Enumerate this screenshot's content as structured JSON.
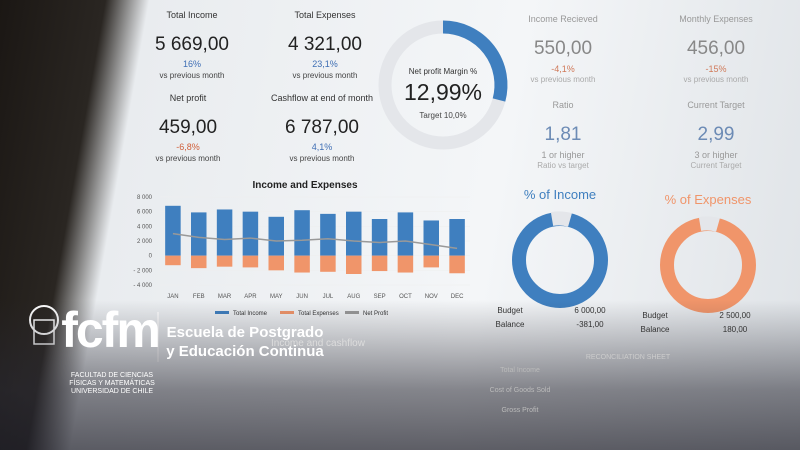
{
  "kpis": [
    {
      "label": "Total Income",
      "value": "5 669,00",
      "change": "16%",
      "note": "vs previous month"
    },
    {
      "label": "Total Expenses",
      "value": "4 321,00",
      "change": "23,1%",
      "note": "vs previous month"
    },
    {
      "label": "Net profit",
      "value": "459,00",
      "change": "-6,8%",
      "note": "vs previous month"
    },
    {
      "label": "Cashflow at end of month",
      "value": "6 787,00",
      "change": "4,1%",
      "note": "vs previous month"
    }
  ],
  "gauge": {
    "title": "Net profit Margin %",
    "value": "12,99%",
    "target": "Target 10,0%"
  },
  "right_kpis": [
    {
      "label": "Income Recieved",
      "value": "550,00",
      "change": "-4,1%",
      "note": "vs previous month"
    },
    {
      "label": "Monthly Expenses",
      "value": "456,00",
      "change": "-15%",
      "note": "vs previous month"
    },
    {
      "label": "Ratio",
      "value": "1,81",
      "change": "1 or higher",
      "note": "Ratio vs target"
    },
    {
      "label": "Current Target",
      "value": "2,99",
      "change": "3 or higher",
      "note": "Current Target"
    }
  ],
  "donuts": [
    {
      "title": "% of Income",
      "budget_label": "Budget",
      "budget": "6 000,00",
      "balance_label": "Balance",
      "balance": "-381,00"
    },
    {
      "title": "% of Expenses",
      "budget_label": "Budget",
      "budget": "2 500,00",
      "balance_label": "Balance",
      "balance": "180,00"
    }
  ],
  "chart": {
    "title": "Income and Expenses",
    "categories": [
      "JAN",
      "FEB",
      "MAR",
      "APR",
      "MAY",
      "JUN",
      "JUL",
      "AUG",
      "SEP",
      "OCT",
      "NOV",
      "DEC"
    ],
    "ylim": [
      -4000,
      8000
    ],
    "yticks": [
      {
        "value": 8000,
        "label": "8 000"
      },
      {
        "value": 6000,
        "label": "6 000"
      },
      {
        "value": 4000,
        "label": "4 000"
      },
      {
        "value": 2000,
        "label": "2 000"
      },
      0,
      {
        "value": -2000,
        "label": "- 2 000"
      },
      {
        "value": -4000,
        "label": "- 4 000"
      }
    ],
    "series": [
      {
        "name": "Total Income",
        "color": "#3f7fbf",
        "values": [
          6800,
          5900,
          6300,
          6000,
          5300,
          6200,
          5700,
          6000,
          5000,
          5900,
          4800,
          5000
        ]
      },
      {
        "name": "Total Expenses",
        "color": "#f0956a",
        "values": [
          -1300,
          -1700,
          -1500,
          -1600,
          -2000,
          -2300,
          -2200,
          -2500,
          -2100,
          -2300,
          -1600,
          -2400
        ]
      },
      {
        "name": "Net Profit",
        "color": "#999999",
        "values": [
          3000,
          2500,
          2200,
          2400,
          2000,
          2100,
          2300,
          2000,
          1800,
          2000,
          1500,
          1000
        ]
      }
    ]
  },
  "cashflow_title": "Income and cashflow",
  "reconciliation": {
    "title": "RECONCILIATION SHEET",
    "rows": [
      "Total Income",
      "Cost of Goods Sold",
      "Gross Profit"
    ]
  },
  "logo": {
    "mark": "fcfm",
    "faculty": [
      "FACULTAD DE CIENCIAS",
      "FÍSICAS Y MATEMÁTICAS",
      "UNIVERSIDAD DE CHILE"
    ],
    "school_line1": "Escuela de Postgrado",
    "school_line2": "y Educación Continua"
  }
}
